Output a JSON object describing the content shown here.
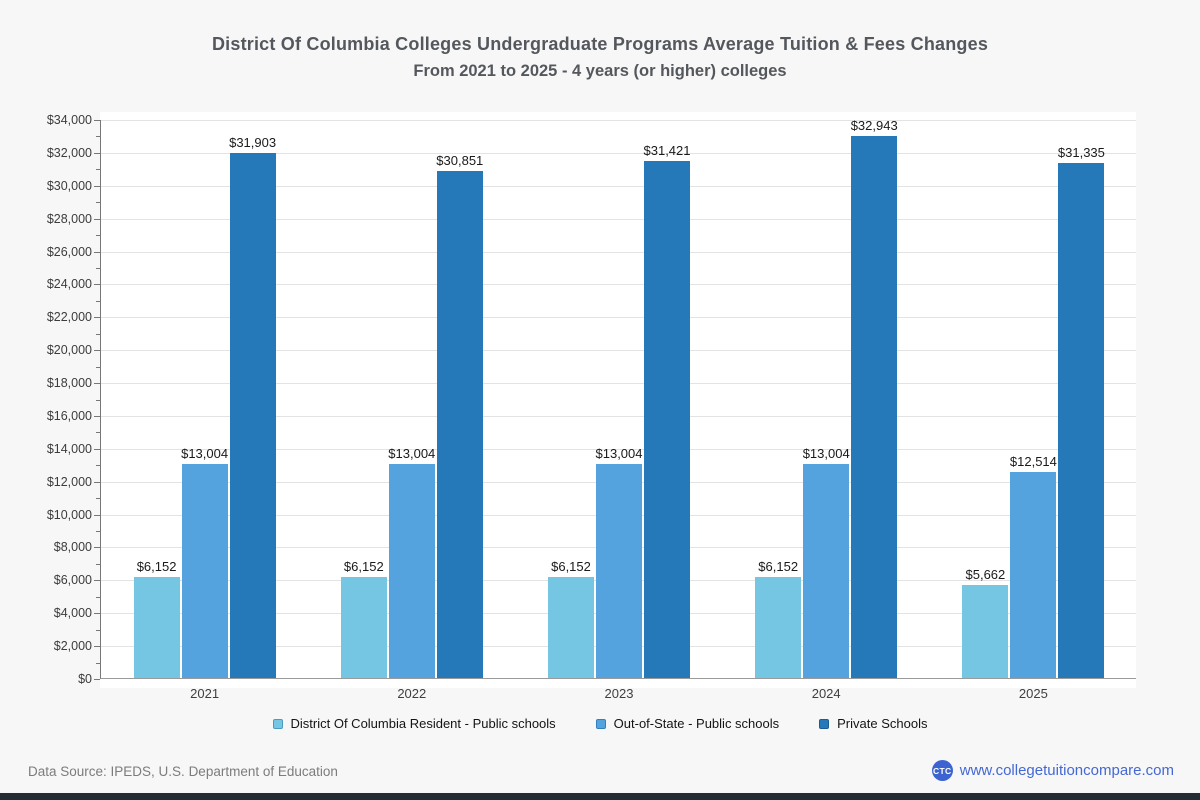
{
  "chart_data": {
    "type": "bar",
    "title": "District Of Columbia Colleges Undergraduate Programs Average Tuition & Fees Changes",
    "subtitle": "From 2021 to 2025 - 4 years (or higher) colleges",
    "categories": [
      "2021",
      "2022",
      "2023",
      "2024",
      "2025"
    ],
    "series": [
      {
        "name": "District Of Columbia Resident - Public schools",
        "color": "#74c6e2",
        "border_color": "#4a9bc2",
        "values": [
          6152,
          6152,
          6152,
          6152,
          5662
        ],
        "value_labels": [
          "$6,152",
          "$6,152",
          "$6,152",
          "$6,152",
          "$5,662"
        ]
      },
      {
        "name": "Out-of-State - Public schools",
        "color": "#54a3de",
        "border_color": "#3180be",
        "values": [
          13004,
          13004,
          13004,
          13004,
          12514
        ],
        "value_labels": [
          "$13,004",
          "$13,004",
          "$13,004",
          "$13,004",
          "$12,514"
        ]
      },
      {
        "name": "Private Schools",
        "color": "#2679b8",
        "border_color": "#1a5d95",
        "values": [
          31903,
          30851,
          31421,
          32943,
          31335
        ],
        "value_labels": [
          "$31,903",
          "$30,851",
          "$31,421",
          "$32,943",
          "$31,335"
        ]
      }
    ],
    "ylim": [
      0,
      34000
    ],
    "ytick_step": 2000,
    "ytick_minor_step": 1000,
    "ytick_labels": [
      "$0",
      "$2,000",
      "$4,000",
      "$6,000",
      "$8,000",
      "$10,000",
      "$12,000",
      "$14,000",
      "$16,000",
      "$18,000",
      "$20,000",
      "$22,000",
      "$24,000",
      "$26,000",
      "$28,000",
      "$30,000",
      "$32,000",
      "$34,000"
    ],
    "grid": true,
    "legend_position": "bottom"
  },
  "footer": {
    "source": "Data Source: IPEDS, U.S. Department of Education",
    "logo_text": "CTC",
    "link": "www.collegetuitioncompare.com"
  }
}
